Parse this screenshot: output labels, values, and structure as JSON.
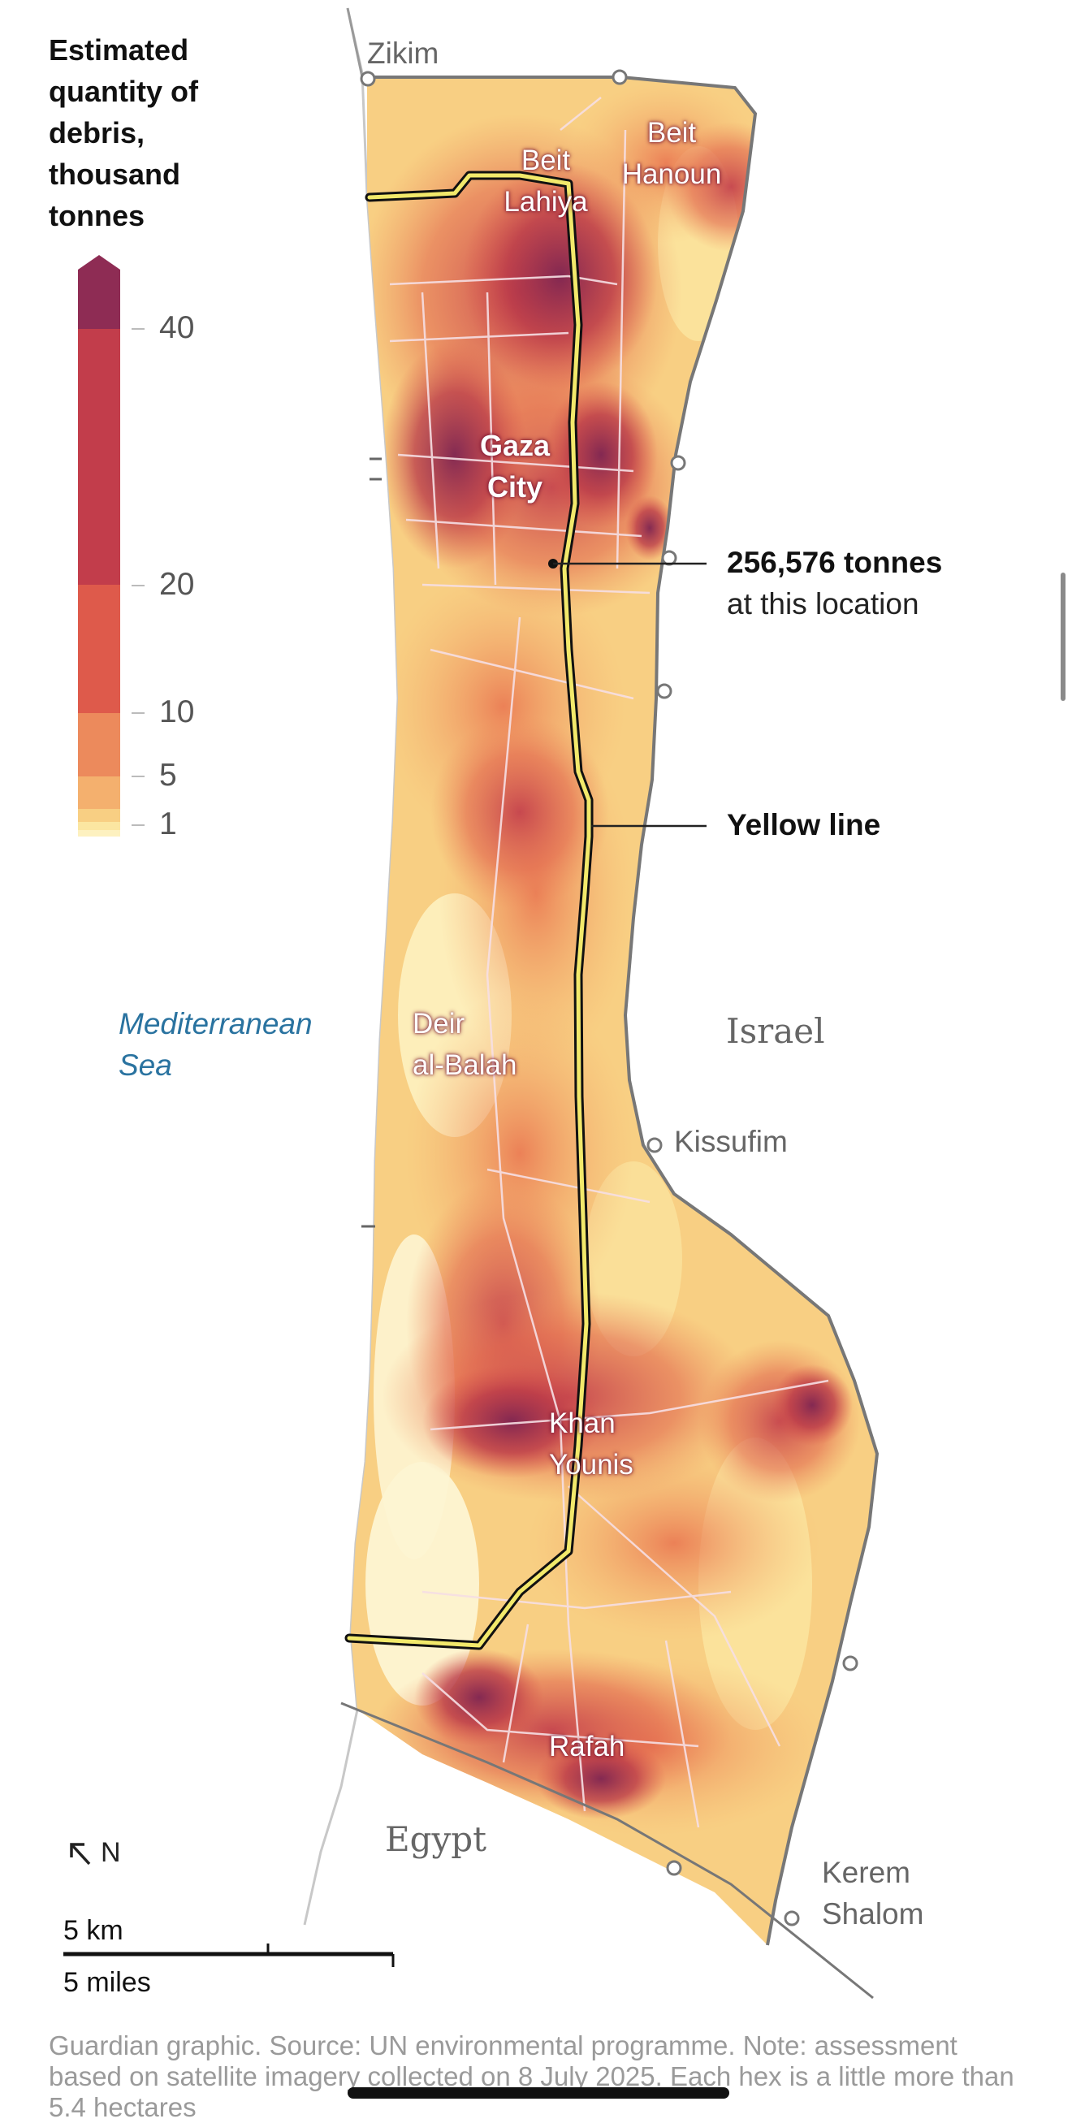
{
  "legend": {
    "title": "Estimated quantity of debris, thousand tonnes",
    "ticks": [
      "40",
      "20",
      "10",
      "5",
      "1"
    ],
    "colors": [
      "#8e2c54",
      "#c23d4b",
      "#de5a4b",
      "#ec8a5c",
      "#f4b06e",
      "#f8cf83",
      "#fbe6a1"
    ]
  },
  "places": {
    "zikim": "Zikim",
    "beit_lahiya": "Beit\nLahiya",
    "beit_hanoun": "Beit\nHanoun",
    "gaza_city": "Gaza\nCity",
    "deir_al_balah": "Deir\nal-Balah",
    "kissufim": "Kissufim",
    "khan_younis": "Khan\nYounis",
    "rafah": "Rafah",
    "kerem_shalom": "Kerem\nShalom"
  },
  "regions": {
    "sea": "Mediterranean\nSea",
    "israel": "Israel",
    "egypt": "Egypt"
  },
  "callouts": {
    "location_value": "256,576 tonnes",
    "location_text": "at this location",
    "yellow_line": "Yellow line"
  },
  "map_meta": {
    "north_label": "N",
    "scale_km": "5 km",
    "scale_miles": "5 miles"
  },
  "footer": "Guardian graphic. Source: UN environmental programme. Note: assessment based on satellite imagery collected on 8 July 2025. Each hex is a little more than 5.4 hectares",
  "colors": {
    "yellow_line": "#f2e96b",
    "road": "#f3d9de",
    "border": "#777777"
  }
}
